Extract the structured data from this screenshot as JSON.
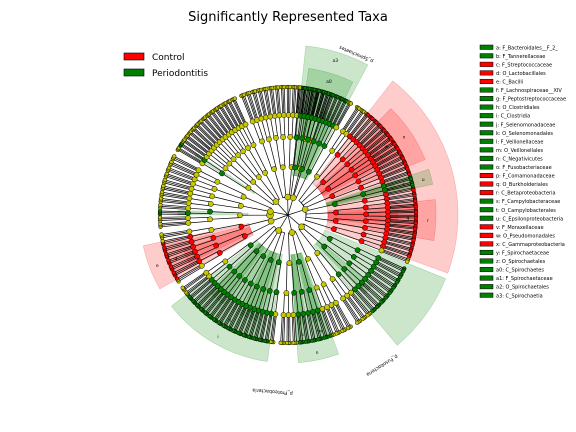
{
  "chart_data": {
    "type": "cladogram",
    "title": "Significantly Represented Taxa",
    "groups": [
      {
        "name": "Control",
        "color": "#ff0000"
      },
      {
        "name": "Periodontitis",
        "color": "#008000"
      }
    ],
    "taxa": [
      {
        "key": "a",
        "label": "a: F_Bacteroidales__F_2_",
        "group": "Periodontitis"
      },
      {
        "key": "b",
        "label": "b: F_Tannerellaceae",
        "group": "Periodontitis"
      },
      {
        "key": "c",
        "label": "c: F_Streptococcaceae",
        "group": "Control"
      },
      {
        "key": "d",
        "label": "d: O_Lactobacillales",
        "group": "Control"
      },
      {
        "key": "e",
        "label": "e: C_Bacilli",
        "group": "Control"
      },
      {
        "key": "f",
        "label": "f: F_Lachnospiraceae__XIV",
        "group": "Periodontitis"
      },
      {
        "key": "g",
        "label": "g: F_Peptostreptococcaceae",
        "group": "Periodontitis"
      },
      {
        "key": "h",
        "label": "h: O_Clostridiales",
        "group": "Periodontitis"
      },
      {
        "key": "i",
        "label": "i: C_Clostridia",
        "group": "Periodontitis"
      },
      {
        "key": "j",
        "label": "j: F_Selenomonadaceae",
        "group": "Periodontitis"
      },
      {
        "key": "k",
        "label": "k: O_Selenomonadales",
        "group": "Periodontitis"
      },
      {
        "key": "l",
        "label": "l: F_Veillonellaceae",
        "group": "Periodontitis"
      },
      {
        "key": "m",
        "label": "m: O_Veillonellales",
        "group": "Periodontitis"
      },
      {
        "key": "n",
        "label": "n: C_Negativicutes",
        "group": "Periodontitis"
      },
      {
        "key": "o",
        "label": "o: F_Fusobacteriaceae",
        "group": "Periodontitis"
      },
      {
        "key": "p",
        "label": "p: F_Comamonadaceae",
        "group": "Control"
      },
      {
        "key": "q",
        "label": "q: O_Burkholderiales",
        "group": "Control"
      },
      {
        "key": "r",
        "label": "r: C_Betaproteobacteria",
        "group": "Control"
      },
      {
        "key": "s",
        "label": "s: F_Campylobacteraceae",
        "group": "Periodontitis"
      },
      {
        "key": "t",
        "label": "t: O_Campylobacterales",
        "group": "Periodontitis"
      },
      {
        "key": "u",
        "label": "u: C_Epsilonproteobacteria",
        "group": "Periodontitis"
      },
      {
        "key": "v",
        "label": "v: F_Moraxellaceae",
        "group": "Control"
      },
      {
        "key": "w",
        "label": "w: O_Pseudomonadales",
        "group": "Control"
      },
      {
        "key": "x",
        "label": "x: C_Gammaproteobacteria",
        "group": "Control"
      },
      {
        "key": "y",
        "label": "y: F_Spirochaetaceae",
        "group": "Periodontitis"
      },
      {
        "key": "z",
        "label": "z: O_Spirochaetales",
        "group": "Periodontitis"
      },
      {
        "key": "a0",
        "label": "a0: C_Spirochaetes",
        "group": "Periodontitis"
      },
      {
        "key": "a1",
        "label": "a1: F_Spirochaetaceae",
        "group": "Periodontitis"
      },
      {
        "key": "a2",
        "label": "a2: O_Spirochaetales",
        "group": "Periodontitis"
      },
      {
        "key": "a3",
        "label": "a3: C_Spirochaetia",
        "group": "Periodontitis"
      }
    ],
    "phylum_labels": [
      {
        "text": "p_Proteobacteria",
        "group": "Control"
      },
      {
        "text": "p_Fusobacteria",
        "group": "Periodontitis"
      },
      {
        "text": "p_Spirochaetes",
        "group": "Periodontitis"
      }
    ],
    "sectors": [
      {
        "a1": 188,
        "a2": 232,
        "group": "Periodontitis",
        "level": 2,
        "letter": "i"
      },
      {
        "a1": 192,
        "a2": 226,
        "group": "Periodontitis",
        "level": 3,
        "letter": "h"
      },
      {
        "a1": 196,
        "a2": 206,
        "group": "Periodontitis",
        "level": 4,
        "letter": "g"
      },
      {
        "a1": 216,
        "a2": 224,
        "group": "Periodontitis",
        "level": 4,
        "letter": "f"
      },
      {
        "a1": 240,
        "a2": 258,
        "group": "Control",
        "level": 2,
        "letter": "e"
      },
      {
        "a1": 242,
        "a2": 256,
        "group": "Control",
        "level": 3,
        "letter": "d"
      },
      {
        "a1": 244,
        "a2": 252,
        "group": "Control",
        "level": 4,
        "letter": "c"
      },
      {
        "a1": 270,
        "a2": 272.5,
        "group": "Periodontitis",
        "level": 4,
        "letter": "b"
      },
      {
        "a1": 302,
        "a2": 304,
        "group": "Periodontitis",
        "level": 4,
        "letter": "a"
      },
      {
        "a1": 6,
        "a2": 28,
        "group": "Periodontitis",
        "level": 1,
        "letter": "a3"
      },
      {
        "a1": 8,
        "a2": 26,
        "group": "Periodontitis",
        "level": 2,
        "letter": "a0"
      },
      {
        "a1": 10,
        "a2": 16,
        "group": "Periodontitis",
        "level": 3,
        "letter": "a2"
      },
      {
        "a1": 18,
        "a2": 24,
        "group": "Periodontitis",
        "level": 4,
        "letter": "a1"
      },
      {
        "a1": 38,
        "a2": 110,
        "group": "Control",
        "level": 1,
        "letter": ""
      },
      {
        "a1": 44,
        "a2": 68,
        "group": "Control",
        "level": 2,
        "letter": "x"
      },
      {
        "a1": 48,
        "a2": 62,
        "group": "Control",
        "level": 3,
        "letter": "w"
      },
      {
        "a1": 54,
        "a2": 60,
        "group": "Control",
        "level": 4,
        "letter": "v"
      },
      {
        "a1": 72,
        "a2": 78,
        "group": "Periodontitis",
        "level": 2,
        "letter": "u"
      },
      {
        "a1": 73,
        "a2": 77,
        "group": "Periodontitis",
        "level": 3,
        "letter": "t"
      },
      {
        "a1": 74,
        "a2": 76,
        "group": "Periodontitis",
        "level": 4,
        "letter": "s"
      },
      {
        "a1": 84,
        "a2": 100,
        "group": "Control",
        "level": 2,
        "letter": "r"
      },
      {
        "a1": 86,
        "a2": 96,
        "group": "Control",
        "level": 3,
        "letter": "q"
      },
      {
        "a1": 88,
        "a2": 94,
        "group": "Control",
        "level": 4,
        "letter": "p"
      },
      {
        "a1": 112,
        "a2": 140,
        "group": "Periodontitis",
        "level": 1,
        "letter": ""
      },
      {
        "a1": 130,
        "a2": 136,
        "group": "Periodontitis",
        "level": 4,
        "letter": "o"
      },
      {
        "a1": 160,
        "a2": 176,
        "group": "Periodontitis",
        "level": 2,
        "letter": "n"
      },
      {
        "a1": 161,
        "a2": 168,
        "group": "Periodontitis",
        "level": 3,
        "letter": "m"
      },
      {
        "a1": 162,
        "a2": 167,
        "group": "Periodontitis",
        "level": 4,
        "letter": "l"
      },
      {
        "a1": 170,
        "a2": 176,
        "group": "Periodontitis",
        "level": 3,
        "letter": "k"
      },
      {
        "a1": 171,
        "a2": 175,
        "group": "Periodontitis",
        "level": 4,
        "letter": "j"
      }
    ],
    "colors": {
      "Control": "#ff0000",
      "Periodontitis": "#008000",
      "neutral_node": "#c8c800"
    }
  }
}
